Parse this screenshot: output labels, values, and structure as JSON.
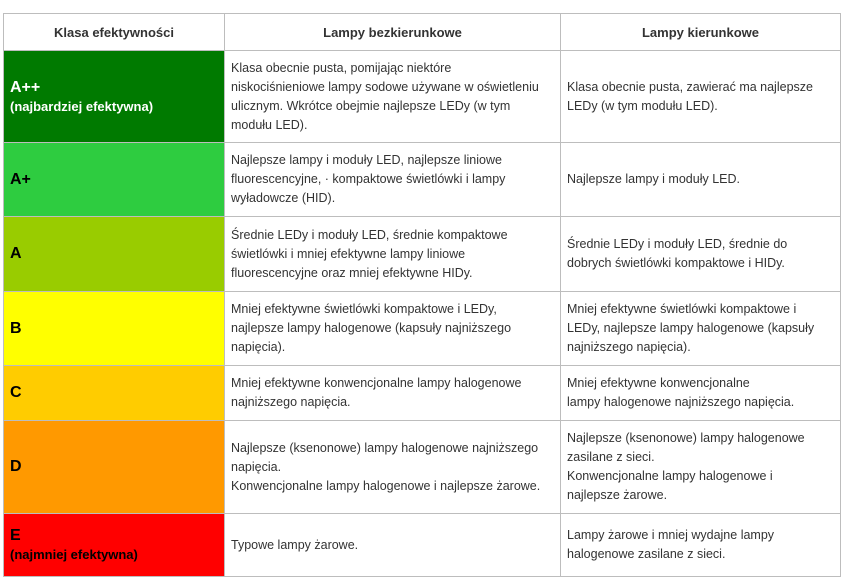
{
  "header": {
    "col1": "Klasa efektywności",
    "col2": "Lampy bezkierunkowe",
    "col3": "Lampy kierunkowe"
  },
  "rows": [
    {
      "class": "A++",
      "sub": "(najbardziej efektywna)",
      "color": "#007a00",
      "light_text": true,
      "non_directional": "Klasa obecnie pusta, pomijając niektóre\nniskociśnieniowe lampy sodowe używane w oświetleniu\nulicznym. Wkrótce obejmie najlepsze LEDy (w tym\nmodułu LED).",
      "directional": "Klasa obecnie pusta, zawierać ma najlepsze\nLEDy (w tym modułu LED)."
    },
    {
      "class": "A+",
      "sub": "",
      "color": "#2ecc40",
      "light_text": false,
      "non_directional": "Najlepsze lampy i moduły LED, najlepsze liniowe\nfluorescencyjne,  · kompaktowe świetlówki i lampy\nwyładowcze (HID).",
      "directional": "Najlepsze lampy i moduły LED."
    },
    {
      "class": "A",
      "sub": "",
      "color": "#99cc00",
      "light_text": false,
      "non_directional": "Średnie LEDy i moduły LED, średnie kompaktowe\nświetlówki i mniej efektywne lampy liniowe\nfluorescencyjne oraz mniej efektywne HIDy.",
      "directional": "Średnie LEDy i moduły LED, średnie do\ndobrych świetlówki kompaktowe i HIDy."
    },
    {
      "class": "B",
      "sub": "",
      "color": "#ffff00",
      "light_text": false,
      "non_directional": "Mniej efektywne świetlówki kompaktowe i LEDy,\nnajlepsze lampy halogenowe (kapsuły najniższego\nnapięcia).",
      "directional": "Mniej efektywne świetlówki kompaktowe i\nLEDy, najlepsze lampy halogenowe (kapsuły\nnajniższego napięcia)."
    },
    {
      "class": "C",
      "sub": "",
      "color": "#ffcc00",
      "light_text": false,
      "non_directional": "Mniej efektywne konwencjonalne lampy halogenowe\nnajniższego napięcia.",
      "directional": "Mniej efektywne konwencjonalne\nlampy halogenowe najniższego napięcia."
    },
    {
      "class": "D",
      "sub": "",
      "color": "#ff9900",
      "light_text": false,
      "non_directional": "Najlepsze (ksenonowe) lampy halogenowe najniższego\nnapięcia.\nKonwencjonalne lampy halogenowe i najlepsze żarowe.",
      "directional": "Najlepsze (ksenonowe) lampy halogenowe\nzasilane z sieci.\nKonwencjonalne lampy halogenowe i\nnajlepsze żarowe."
    },
    {
      "class": "E",
      "sub": "(najmniej efektywna)",
      "color": "#ff0000",
      "light_text": false,
      "non_directional": "Typowe lampy żarowe.",
      "directional": "Lampy żarowe i mniej wydajne lampy\nhalogenowe zasilane z sieci."
    }
  ]
}
